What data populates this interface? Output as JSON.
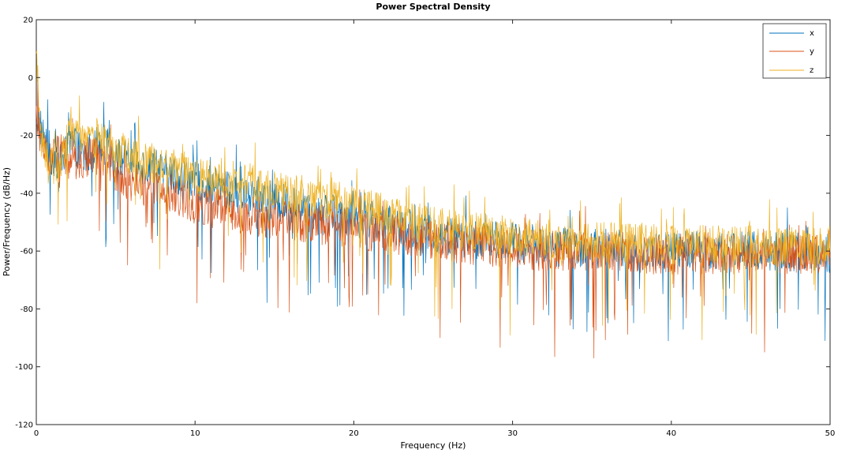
{
  "chart_data": {
    "type": "line",
    "title": "Power Spectral Density",
    "xlabel": "Frequency (Hz)",
    "ylabel": "Power/Frequency (dB/Hz)",
    "xlim": [
      0,
      50
    ],
    "ylim": [
      -120,
      20
    ],
    "xticks": [
      0,
      10,
      20,
      30,
      40,
      50
    ],
    "xtick_labels": [
      "0",
      "10",
      "20",
      "30",
      "40",
      "50"
    ],
    "yticks": [
      20,
      0,
      -20,
      -40,
      -60,
      -80,
      -100,
      -120
    ],
    "ytick_labels": [
      "20",
      "0",
      "-20",
      "-40",
      "-60",
      "-80",
      "-100",
      "-120"
    ],
    "grid": false,
    "legend_position": "top-right",
    "series": [
      {
        "name": "x",
        "color": "#0072bd",
        "x": [
          0,
          0.3,
          0.8,
          1.5,
          2.3,
          3,
          4,
          5,
          6,
          7,
          8,
          9,
          10,
          12,
          14,
          16,
          18,
          20,
          22,
          24,
          26,
          28,
          30,
          32,
          34,
          36,
          38,
          40,
          42,
          44,
          46,
          48,
          50
        ],
        "mean": [
          -12,
          -18,
          -26,
          -30,
          -22,
          -28,
          -22,
          -27,
          -29,
          -31,
          -33,
          -34,
          -36,
          -39,
          -42,
          -44,
          -46,
          -48,
          -51,
          -53,
          -55,
          -56,
          -57,
          -58,
          -59,
          -59,
          -60,
          -60,
          -60,
          -60,
          -60,
          -60,
          -61
        ]
      },
      {
        "name": "y",
        "color": "#d95319",
        "x": [
          0,
          0.3,
          0.8,
          1.5,
          2.3,
          3,
          4,
          5,
          6,
          7,
          8,
          9,
          10,
          12,
          14,
          16,
          18,
          20,
          22,
          24,
          26,
          28,
          30,
          32,
          34,
          36,
          38,
          40,
          42,
          44,
          46,
          48,
          50
        ],
        "mean": [
          -14,
          -22,
          -28,
          -26,
          -30,
          -28,
          -27,
          -33,
          -36,
          -38,
          -40,
          -42,
          -44,
          -46,
          -48,
          -50,
          -51,
          -52,
          -54,
          -55,
          -57,
          -58,
          -59,
          -60,
          -60,
          -60,
          -61,
          -61,
          -61,
          -61,
          -61,
          -61,
          -61
        ]
      },
      {
        "name": "z",
        "color": "#edb120",
        "x": [
          0,
          0.3,
          0.8,
          1.5,
          2.3,
          3,
          4,
          5,
          6,
          7,
          8,
          9,
          10,
          12,
          14,
          16,
          18,
          20,
          22,
          24,
          26,
          28,
          30,
          32,
          34,
          36,
          38,
          40,
          42,
          44,
          46,
          48,
          50
        ],
        "mean": [
          10,
          -20,
          -32,
          -28,
          -18,
          -24,
          -20,
          -25,
          -27,
          -29,
          -31,
          -32,
          -34,
          -36,
          -38,
          -40,
          -42,
          -44,
          -47,
          -50,
          -52,
          -54,
          -55,
          -56,
          -57,
          -57,
          -57,
          -58,
          -58,
          -58,
          -58,
          -58,
          -58
        ]
      }
    ]
  }
}
